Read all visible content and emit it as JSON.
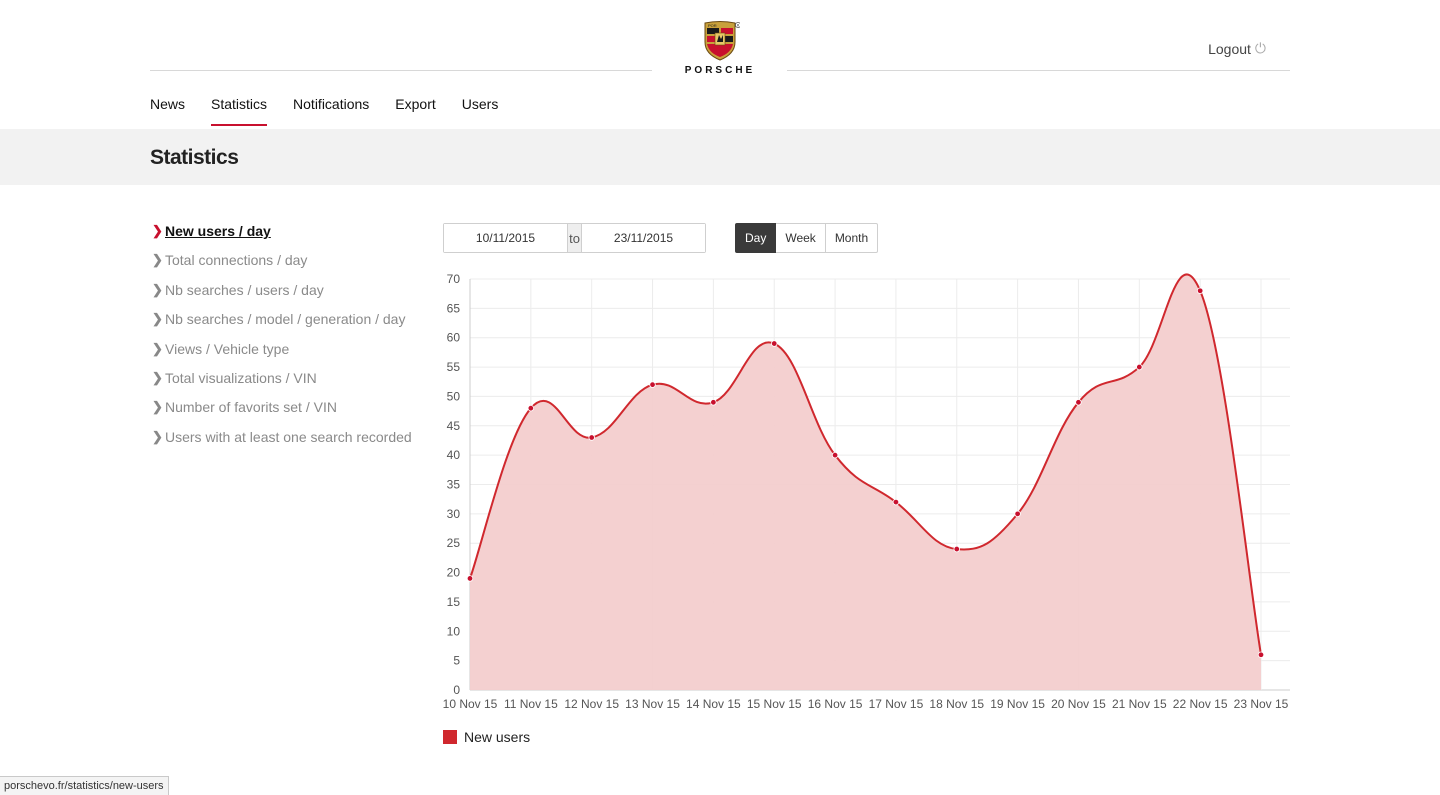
{
  "header": {
    "brand_word": "PORSCHE",
    "logout_label": "Logout",
    "logout_icon": "power-icon"
  },
  "nav": {
    "items": [
      {
        "label": "News",
        "active": false
      },
      {
        "label": "Statistics",
        "active": true
      },
      {
        "label": "Notifications",
        "active": false
      },
      {
        "label": "Export",
        "active": false
      },
      {
        "label": "Users",
        "active": false
      }
    ]
  },
  "page": {
    "title": "Statistics"
  },
  "side_menu": {
    "items": [
      {
        "label": "New users / day",
        "active": true
      },
      {
        "label": "Total connections / day",
        "active": false
      },
      {
        "label": "Nb searches / users / day",
        "active": false
      },
      {
        "label": "Nb searches / model / generation / day",
        "active": false
      },
      {
        "label": "Views / Vehicle type",
        "active": false
      },
      {
        "label": "Total visualizations / VIN",
        "active": false
      },
      {
        "label": "Number of favorits set / VIN",
        "active": false
      },
      {
        "label": "Users with at least one search recorded",
        "active": false
      }
    ]
  },
  "filters": {
    "date_from": "10/11/2015",
    "date_to": "23/11/2015",
    "separator": "to",
    "periods": [
      {
        "label": "Day",
        "active": true
      },
      {
        "label": "Week",
        "active": false
      },
      {
        "label": "Month",
        "active": false
      }
    ]
  },
  "chart_data": {
    "type": "area",
    "categories": [
      "10 Nov 15",
      "11 Nov 15",
      "12 Nov 15",
      "13 Nov 15",
      "14 Nov 15",
      "15 Nov 15",
      "16 Nov 15",
      "17 Nov 15",
      "18 Nov 15",
      "19 Nov 15",
      "20 Nov 15",
      "21 Nov 15",
      "22 Nov 15",
      "23 Nov 15"
    ],
    "series": [
      {
        "name": "New users",
        "values": [
          19,
          48,
          43,
          52,
          49,
          59,
          40,
          32,
          24,
          30,
          49,
          55,
          68,
          6
        ]
      }
    ],
    "yticks": [
      0,
      5,
      10,
      15,
      20,
      25,
      30,
      35,
      40,
      45,
      50,
      55,
      60,
      65,
      70
    ],
    "ylim": [
      0,
      70
    ],
    "grid": true,
    "legend_position": "bottom-left",
    "line_color": "#d0282e",
    "fill_color": "#f3cdcd"
  },
  "status_bar": {
    "url": "porschevo.fr/statistics/new-users"
  },
  "colors": {
    "accent": "#c8102e",
    "active_button": "#3a3a3a",
    "band": "#f2f2f2"
  }
}
